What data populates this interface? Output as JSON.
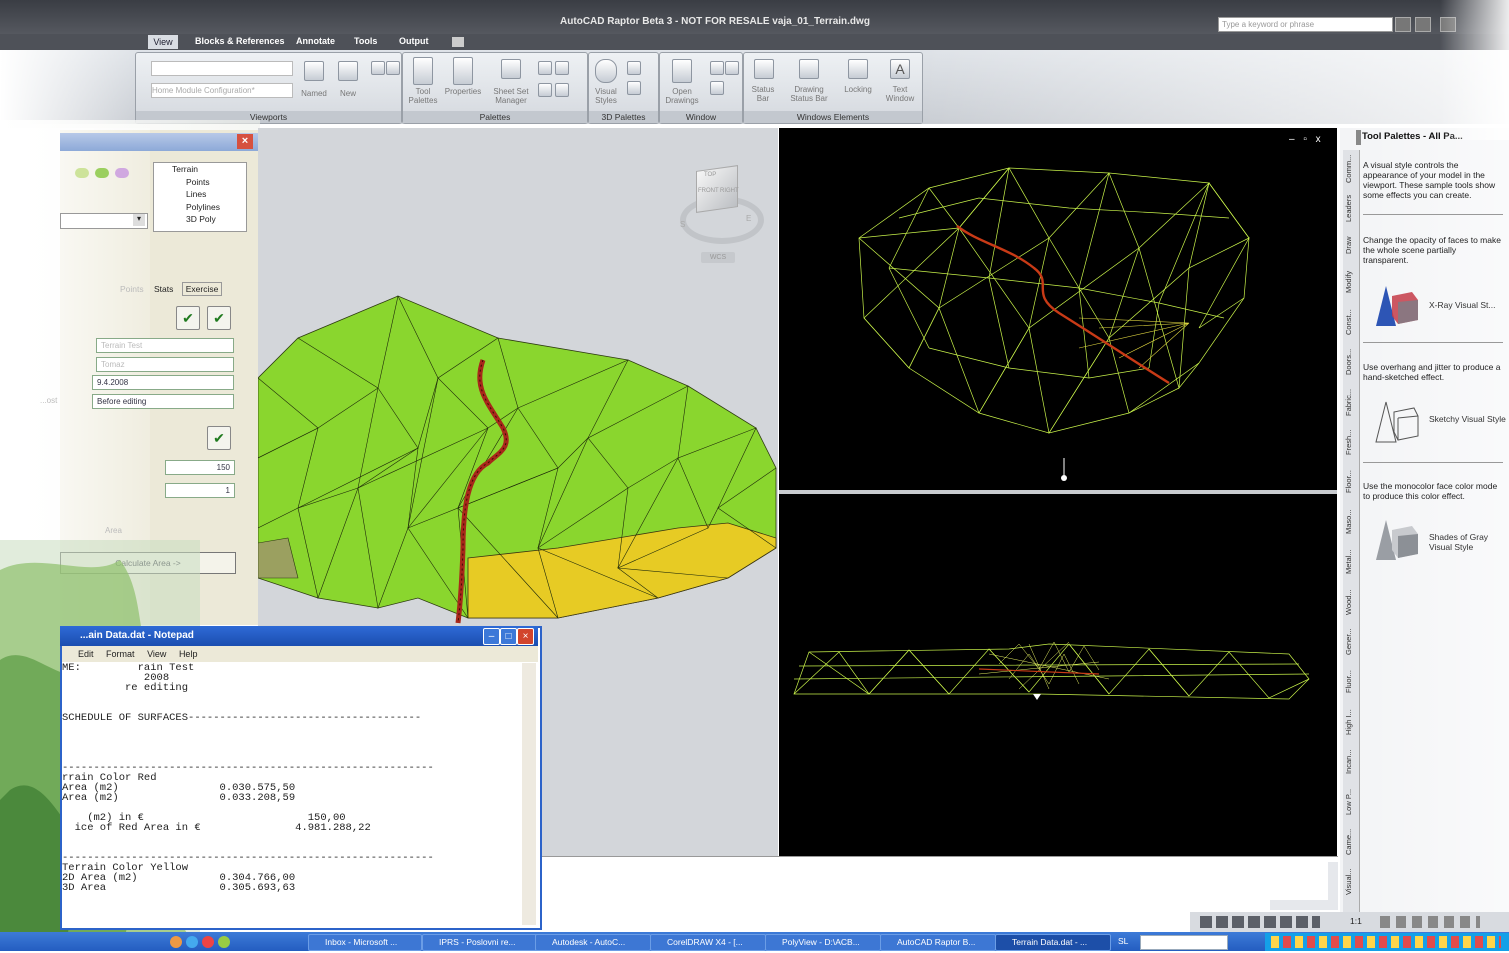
{
  "window": {
    "title_prefix": "AutoCAD Raptor Beta 3 - NOT FOR RESALE",
    "title_file": "vaja_01_Terrain.dwg",
    "search_placeholder": "Type a keyword or phrase"
  },
  "ribbon": {
    "tabs": [
      "View",
      "Blocks & References",
      "Annotate",
      "Tools",
      "Output"
    ],
    "module_config": "Home Module Configuration*",
    "panels": [
      {
        "title": "Viewports",
        "buttons": [
          "Named",
          "New"
        ]
      },
      {
        "title": "Palettes",
        "buttons": [
          "Tool Palettes",
          "Properties",
          "Sheet Set Manager"
        ]
      },
      {
        "title": "3D Palettes",
        "buttons": [
          "Visual Styles"
        ]
      },
      {
        "title": "Window",
        "buttons": [
          "Open Drawings"
        ]
      },
      {
        "title": "Windows Elements",
        "buttons": [
          "Status Bar",
          "Drawing Status Bar",
          "Locking",
          "Text Window"
        ]
      }
    ]
  },
  "stats_panel": {
    "tree": [
      "Terrain",
      "Points",
      "Lines",
      "Polylines",
      "3D Poly"
    ],
    "tabs": [
      "Points",
      "Stats",
      "Exercise"
    ],
    "fields": {
      "name": "Terrain Test",
      "author": "Tomaz",
      "date": "9.4.2008",
      "desc_label": "...ost",
      "desc": "Before editing",
      "price": "150",
      "factor": "1",
      "area_label": "Area",
      "calc_button": "Calculate Area ->"
    }
  },
  "viewcube": {
    "top": "TOP",
    "front": "FRONT",
    "right": "RIGHT",
    "south": "S",
    "east": "E",
    "wcs": "WCS"
  },
  "viewport_controls": [
    "–",
    "▫",
    "x"
  ],
  "tool_palette": {
    "title": "Tool Palettes - All Pa...",
    "side_tabs": [
      "Comm...",
      "Leaders",
      "Draw",
      "Modify",
      "Const...",
      "Doors...",
      "Fabric...",
      "Fresh...",
      "Floor...",
      "Maso...",
      "Metal...",
      "Wood...",
      "Gener...",
      "Fluor...",
      "High I...",
      "Incan...",
      "Low P...",
      "Came...",
      "Visual..."
    ],
    "items": [
      {
        "desc": "A visual style controls the appearance of your model in the viewport. These sample tools show some effects you can create.",
        "label": ""
      },
      {
        "desc": "Change the opacity of faces to make the whole scene partially transparent.",
        "label": "X-Ray Visual St..."
      },
      {
        "desc": "Use overhang and jitter to produce a hand-sketched effect.",
        "label": "Sketchy Visual Style"
      },
      {
        "desc": "Use the monocolor face color mode to produce this color effect.",
        "label": "Shades of Gray Visual Style"
      }
    ]
  },
  "notepad": {
    "title": "...ain Data.dat - Notepad",
    "menu": [
      "Edit",
      "Format",
      "View",
      "Help"
    ],
    "lines": [
      "ME:         rain Test",
      "             2008",
      "          re editing",
      "",
      "",
      "SCHEDULE OF SURFACES-------------------------------------",
      "",
      "",
      "",
      "",
      "-----------------------------------------------------------",
      "rrain Color Red",
      "Area (m2)                0.030.575,50",
      "Area (m2)                0.033.208,59",
      "",
      "    (m2) in €                          150,00",
      "  ice of Red Area in €               4.981.288,22",
      "",
      "",
      "-----------------------------------------------------------",
      "Terrain Color Yellow",
      "2D Area (m2)             0.304.766,00",
      "3D Area                  0.305.693,63"
    ]
  },
  "statusbar": {
    "scale": "1:1"
  },
  "taskbar": {
    "items": [
      "Inbox - Microsoft ...",
      "IPRS - Poslovni re...",
      "Autodesk - AutoC...",
      "CorelDRAW X4 - [...",
      "PolyView - D:\\ACB...",
      "AutoCAD Raptor B...",
      "Terrain Data.dat - ..."
    ],
    "lang": "SL"
  },
  "colors": {
    "terrain_green": "#84d42a",
    "terrain_yellow": "#e6cc22",
    "path_red": "#b02a18",
    "wire": "#c8f24a"
  }
}
